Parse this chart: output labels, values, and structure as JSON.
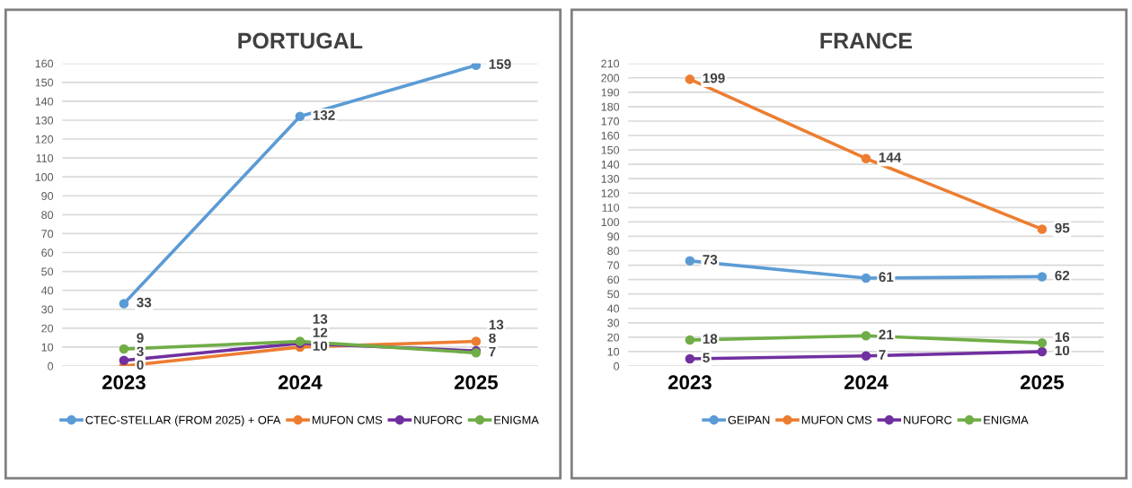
{
  "chart_data": [
    {
      "type": "line",
      "title": "PORTUGAL",
      "categories": [
        "2023",
        "2024",
        "2025"
      ],
      "ylim": [
        0,
        160
      ],
      "yticks": [
        0,
        10,
        20,
        30,
        40,
        50,
        60,
        70,
        80,
        90,
        100,
        110,
        120,
        130,
        140,
        150,
        160
      ],
      "grid": "y",
      "legend": "bottom",
      "marker": "circle",
      "data_labels": true,
      "series": [
        {
          "name": "CTEC-STELLAR (FROM 2025) + OFA",
          "color": "#5b9bd5",
          "values": [
            33,
            132,
            159
          ]
        },
        {
          "name": "MUFON CMS",
          "color": "#ed7d31",
          "values": [
            0,
            10,
            13
          ]
        },
        {
          "name": "NUFORC",
          "color": "#7030a0",
          "values": [
            3,
            12,
            8
          ]
        },
        {
          "name": "ENIGMA",
          "color": "#70ad47",
          "values": [
            9,
            13,
            7
          ]
        }
      ]
    },
    {
      "type": "line",
      "title": "FRANCE",
      "categories": [
        "2023",
        "2024",
        "2025"
      ],
      "ylim": [
        0,
        210
      ],
      "yticks": [
        0,
        10,
        20,
        30,
        40,
        50,
        60,
        70,
        80,
        90,
        100,
        110,
        120,
        130,
        140,
        150,
        160,
        170,
        180,
        190,
        200,
        210
      ],
      "grid": "y",
      "legend": "bottom",
      "marker": "circle",
      "data_labels": true,
      "series": [
        {
          "name": "GEIPAN",
          "color": "#5b9bd5",
          "values": [
            73,
            61,
            62
          ]
        },
        {
          "name": "MUFON CMS",
          "color": "#ed7d31",
          "values": [
            199,
            144,
            95
          ]
        },
        {
          "name": "NUFORC",
          "color": "#7030a0",
          "values": [
            5,
            7,
            10
          ]
        },
        {
          "name": "ENIGMA",
          "color": "#70ad47",
          "values": [
            18,
            21,
            16
          ]
        }
      ]
    }
  ]
}
